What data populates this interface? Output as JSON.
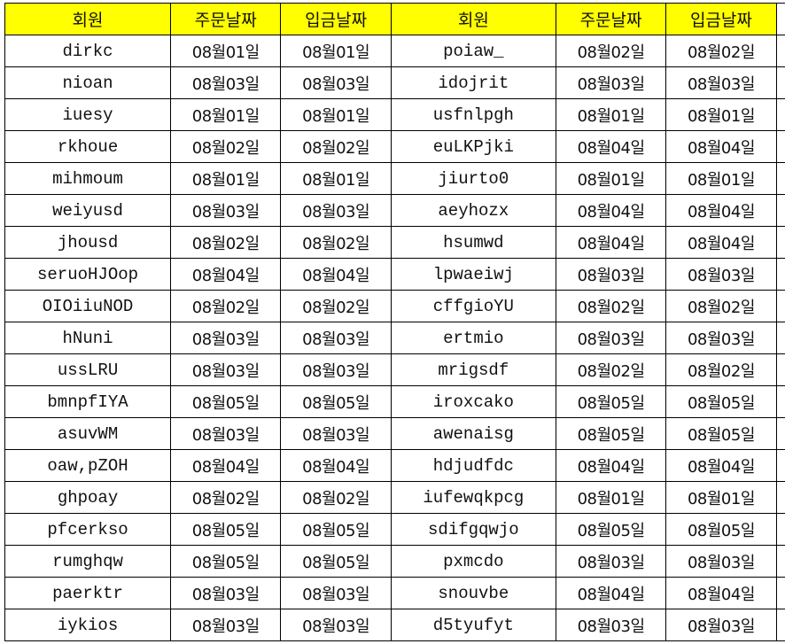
{
  "header": [
    "회원",
    "주문날짜",
    "입금날짜",
    "회원",
    "주문날짜",
    "입금날짜"
  ],
  "colors": {
    "header_bg": "#ffff00",
    "grid": "#000000"
  },
  "rows": [
    [
      "dirkc",
      "08월01일",
      "08월01일",
      "poiaw_",
      "08월02일",
      "08월02일"
    ],
    [
      "nioan",
      "08월03일",
      "08월03일",
      "idojrit",
      "08월03일",
      "08월03일"
    ],
    [
      "iuesy",
      "08월01일",
      "08월01일",
      "usfnlpgh",
      "08월01일",
      "08월01일"
    ],
    [
      "rkhoue",
      "08월02일",
      "08월02일",
      "euLKPjki",
      "08월04일",
      "08월04일"
    ],
    [
      "mihmoum",
      "08월01일",
      "08월01일",
      "jiurto0",
      "08월01일",
      "08월01일"
    ],
    [
      "weiyusd",
      "08월03일",
      "08월03일",
      "aeyhozx",
      "08월04일",
      "08월04일"
    ],
    [
      "jhousd",
      "08월02일",
      "08월02일",
      "hsumwd",
      "08월04일",
      "08월04일"
    ],
    [
      "seruoHJOop",
      "08월04일",
      "08월04일",
      "lpwaeiwj",
      "08월03일",
      "08월03일"
    ],
    [
      "OIOiiuNOD",
      "08월02일",
      "08월02일",
      "cffgioYU",
      "08월02일",
      "08월02일"
    ],
    [
      "hNuni",
      "08월03일",
      "08월03일",
      "ertmio",
      "08월03일",
      "08월03일"
    ],
    [
      "ussLRU",
      "08월03일",
      "08월03일",
      "mrigsdf",
      "08월02일",
      "08월02일"
    ],
    [
      "bmnpfIYA",
      "08월05일",
      "08월05일",
      "iroxcako",
      "08월05일",
      "08월05일"
    ],
    [
      "asuvWM",
      "08월03일",
      "08월03일",
      "awenaisg",
      "08월05일",
      "08월05일"
    ],
    [
      "oaw,pZOH",
      "08월04일",
      "08월04일",
      "hdjudfdc",
      "08월04일",
      "08월04일"
    ],
    [
      "ghpoay",
      "08월02일",
      "08월02일",
      "iufewqkpcg",
      "08월01일",
      "08월01일"
    ],
    [
      "pfcerkso",
      "08월05일",
      "08월05일",
      "sdifgqwjo",
      "08월05일",
      "08월05일"
    ],
    [
      "rumghqw",
      "08월05일",
      "08월05일",
      "pxmcdo",
      "08월03일",
      "08월03일"
    ],
    [
      "paerktr",
      "08월03일",
      "08월03일",
      "snouvbe",
      "08월04일",
      "08월04일"
    ],
    [
      "iykios",
      "08월03일",
      "08월03일",
      "d5tyufyt",
      "08월03일",
      "08월03일"
    ]
  ]
}
